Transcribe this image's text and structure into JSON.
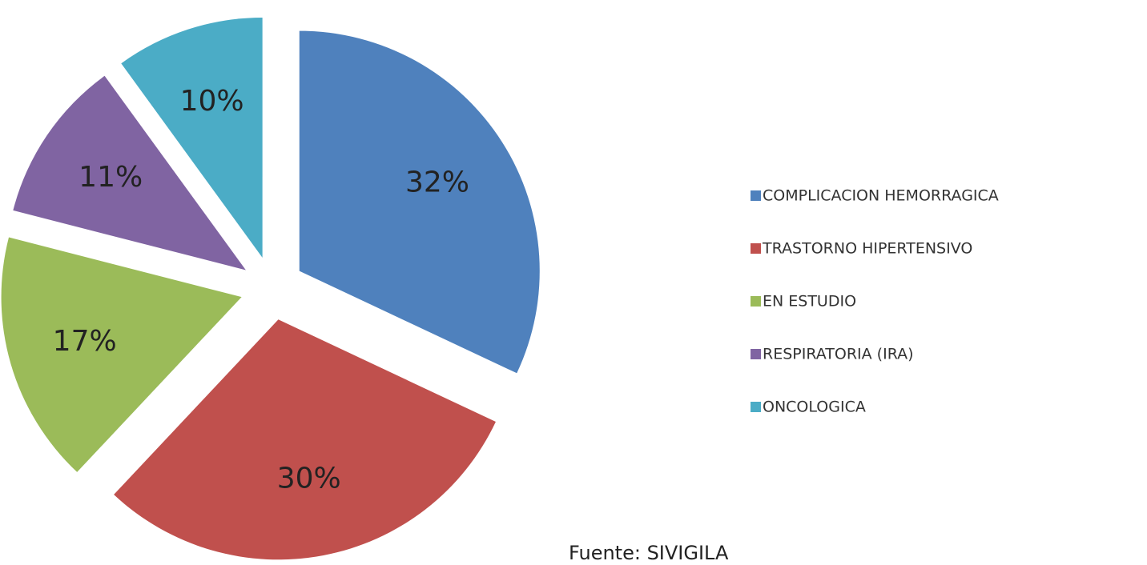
{
  "chart_data": {
    "type": "pie",
    "categories": [
      "COMPLICACION HEMORRAGICA",
      "TRASTORNO HIPERTENSIVO",
      "EN ESTUDIO",
      "RESPIRATORIA (IRA)",
      "ONCOLOGICA"
    ],
    "values": [
      32,
      30,
      17,
      11,
      10
    ],
    "value_labels": [
      "32%",
      "30%",
      "17%",
      "11%",
      "10%"
    ],
    "colors": [
      "#4f81bd",
      "#c0504d",
      "#9bbb59",
      "#8064a2",
      "#4bacc6"
    ],
    "legend": "right",
    "source": "Fuente: SIVIGILA"
  }
}
